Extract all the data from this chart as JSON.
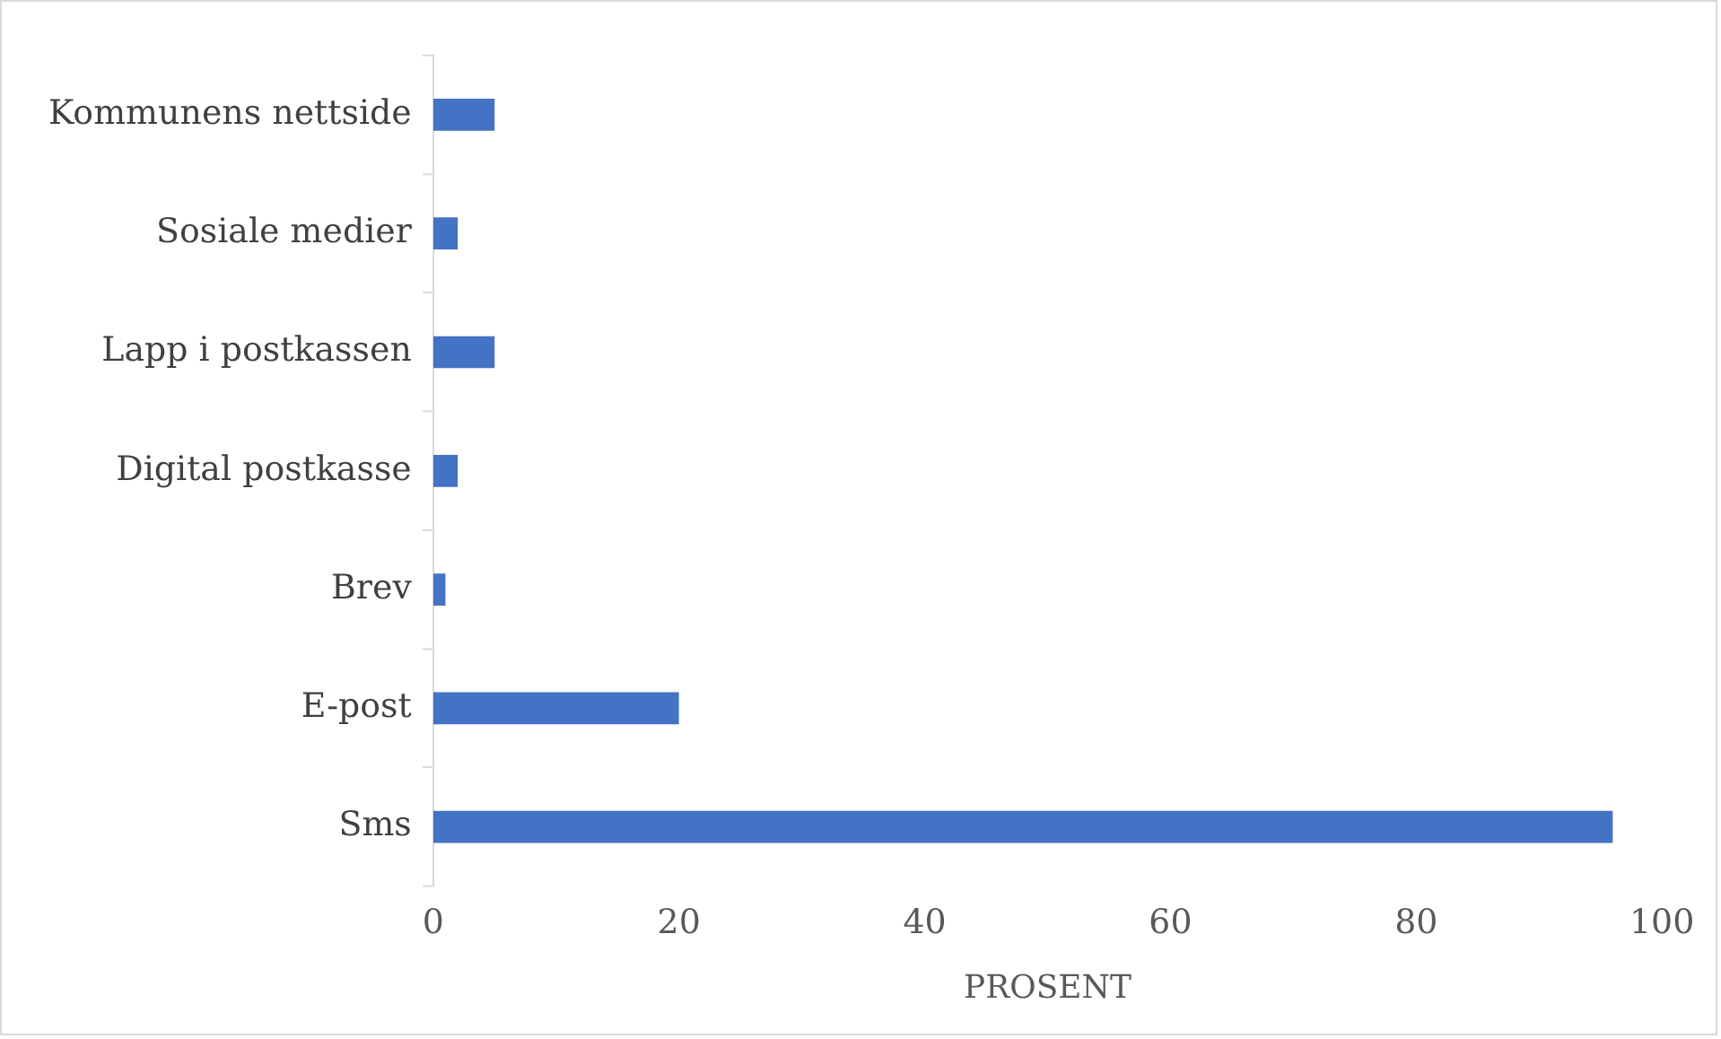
{
  "chart_data": {
    "type": "bar",
    "orientation": "horizontal",
    "xlabel": "PROSENT",
    "categories": [
      "Kommunens nettside",
      "Sosiale medier",
      "Lapp i postkassen",
      "Digital postkasse",
      "Brev",
      "E-post",
      "Sms"
    ],
    "values": [
      5,
      2,
      5,
      2,
      1,
      20,
      96
    ],
    "color": "#4472c4",
    "xlim": [
      0,
      100
    ],
    "xticks": [
      0,
      20,
      40,
      60,
      80,
      100
    ],
    "grid": false,
    "legend": false
  }
}
